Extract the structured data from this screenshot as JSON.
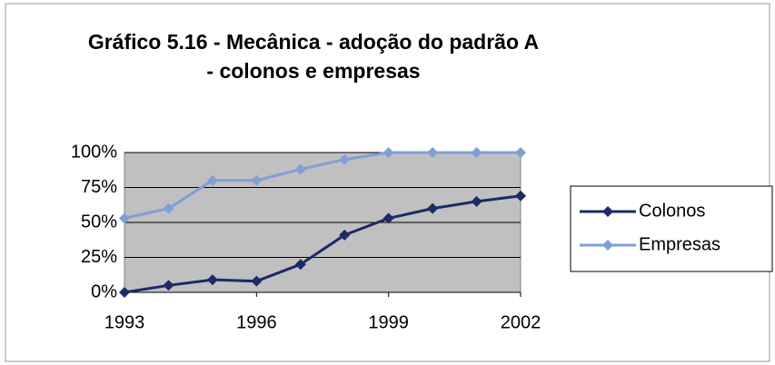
{
  "chart_data": {
    "type": "line",
    "title": "Gráfico 5.16 - Mecânica - adoção do padrão A - colonos e empresas",
    "x": [
      1993,
      1994,
      1995,
      1996,
      1997,
      1998,
      1999,
      2000,
      2001,
      2002
    ],
    "xlim": [
      1993,
      2002
    ],
    "xticks": [
      1993,
      1996,
      1999,
      2002
    ],
    "ylim": [
      0,
      100
    ],
    "yticks": [
      {
        "value": 0,
        "label": "0%"
      },
      {
        "value": 25,
        "label": "25%"
      },
      {
        "value": 50,
        "label": "50%"
      },
      {
        "value": 75,
        "label": "75%"
      },
      {
        "value": 100,
        "label": "100%"
      }
    ],
    "grid": true,
    "legend": "right",
    "series": [
      {
        "name": "Colonos",
        "color": "#1c2a66",
        "values": [
          0,
          5,
          9,
          8,
          20,
          41,
          53,
          60,
          65,
          69
        ]
      },
      {
        "name": "Empresas",
        "color": "#7f9fd6",
        "values": [
          53,
          60,
          80,
          80,
          88,
          95,
          100,
          100,
          100,
          100
        ]
      }
    ]
  }
}
